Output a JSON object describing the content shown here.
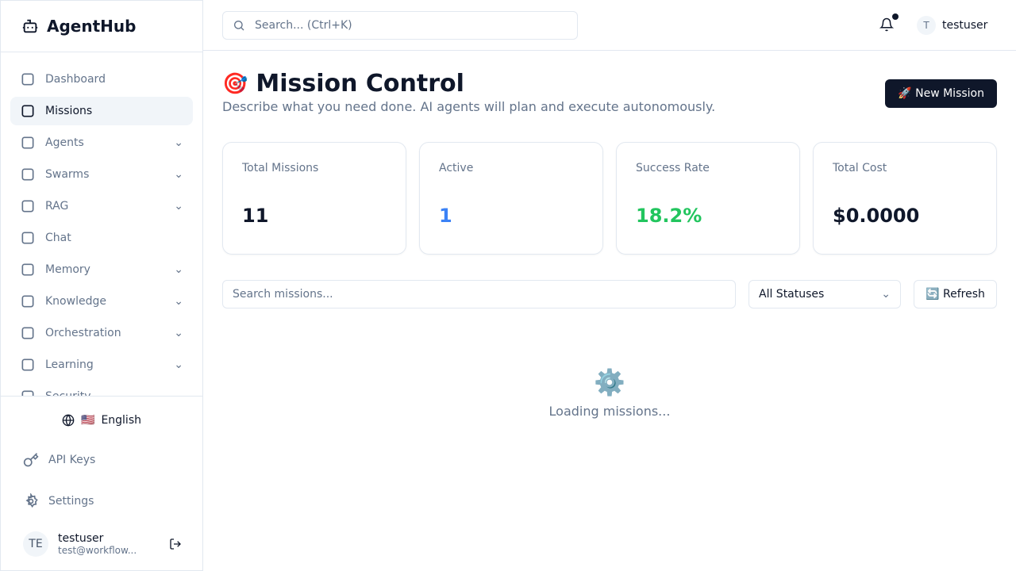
{
  "brand": {
    "name": "AgentHub",
    "icon": "bot-icon"
  },
  "sidebar": {
    "items": [
      {
        "label": "Dashboard",
        "icon": "layout-dashboard-icon",
        "expandable": false,
        "active": false
      },
      {
        "label": "Missions",
        "icon": "target-icon",
        "expandable": false,
        "active": true
      },
      {
        "label": "Agents",
        "icon": "bot-icon",
        "expandable": true
      },
      {
        "label": "Swarms",
        "icon": "users-icon",
        "expandable": true
      },
      {
        "label": "RAG",
        "icon": "file-text-icon",
        "expandable": true
      },
      {
        "label": "Chat",
        "icon": "message-square-icon",
        "expandable": false
      },
      {
        "label": "Memory",
        "icon": "brain-icon",
        "expandable": true
      },
      {
        "label": "Knowledge",
        "icon": "network-icon",
        "expandable": true
      },
      {
        "label": "Orchestration",
        "icon": "users-icon",
        "expandable": true
      },
      {
        "label": "Learning",
        "icon": "graduation-cap-icon",
        "expandable": true
      },
      {
        "label": "Security",
        "icon": "shield-icon",
        "expandable": true
      }
    ],
    "language": {
      "flag": "🇺🇸",
      "label": "English"
    },
    "api_keys": "API Keys",
    "settings": "Settings",
    "user": {
      "initials": "TE",
      "name": "testuser",
      "email": "test@workflow..."
    }
  },
  "topbar": {
    "search_placeholder": "Search... (Ctrl+K)",
    "user_initial": "T",
    "username": "testuser"
  },
  "page": {
    "emoji": "🎯",
    "title": "Mission Control",
    "subtitle": "Describe what you need done. AI agents will plan and execute autonomously.",
    "new_button": "🚀 New Mission"
  },
  "stats": [
    {
      "label": "Total Missions",
      "value": "11",
      "color": "#0f172a"
    },
    {
      "label": "Active",
      "value": "1",
      "color": "#3b82f6"
    },
    {
      "label": "Success Rate",
      "value": "18.2%",
      "color": "#22c55e"
    },
    {
      "label": "Total Cost",
      "value": "$0.0000",
      "color": "#0f172a"
    }
  ],
  "filters": {
    "search_placeholder": "Search missions...",
    "status": "All Statuses",
    "refresh": "🔄 Refresh"
  },
  "loading": {
    "icon": "⚙️",
    "text": "Loading missions..."
  }
}
